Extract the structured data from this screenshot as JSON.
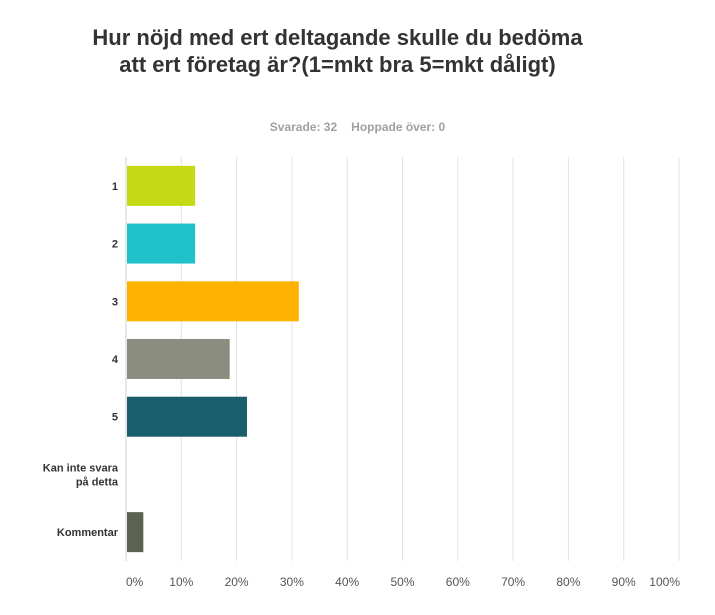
{
  "title": "Hur nöjd med ert deltagande skulle du bedöma att ert företag är?(1=mkt bra  5=mkt dåligt)",
  "stats": {
    "answered": "Svarade: 32",
    "skipped": "Hoppade över: 0"
  },
  "chart_data": {
    "type": "bar",
    "orientation": "horizontal",
    "categories": [
      "1",
      "2",
      "3",
      "4",
      "5",
      "Kan inte svara på detta",
      "Kommentar"
    ],
    "category_lines": [
      [
        "1"
      ],
      [
        "2"
      ],
      [
        "3"
      ],
      [
        "4"
      ],
      [
        "5"
      ],
      [
        "Kan inte svara",
        "på detta"
      ],
      [
        "Kommentar"
      ]
    ],
    "values": [
      12.5,
      12.5,
      31.25,
      18.75,
      21.88,
      0,
      3.13
    ],
    "colors": [
      "#c5d916",
      "#1ec2c8",
      "#fdb200",
      "#8b8d7e",
      "#1b5e6b",
      "#9d5bc0",
      "#5c6150"
    ],
    "xlim": [
      0,
      100
    ],
    "xticks": [
      "0%",
      "10%",
      "20%",
      "30%",
      "40%",
      "50%",
      "60%",
      "70%",
      "80%",
      "90%",
      "100%"
    ],
    "grid": true
  }
}
